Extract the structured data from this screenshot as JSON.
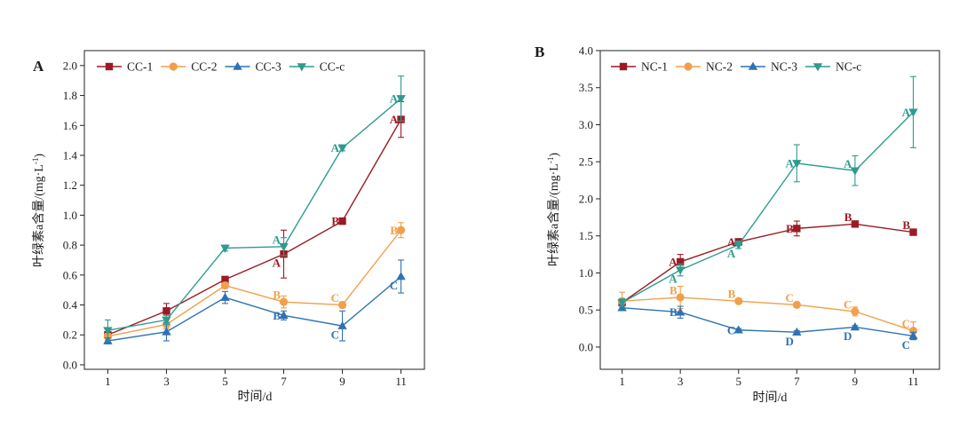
{
  "chart_data": [
    {
      "panel": "A",
      "type": "line",
      "xlabel": "时间/d",
      "ylabel": {
        "main": "叶绿素a含量/(mg·L",
        "sup": "-1",
        "end": ")"
      },
      "x": [
        1,
        3,
        5,
        7,
        9,
        11
      ],
      "xticks": [
        1,
        3,
        5,
        7,
        9,
        11
      ],
      "yticks": [
        "0.0",
        "0.2",
        "0.4",
        "0.6",
        "0.8",
        "1.0",
        "1.2",
        "1.4",
        "1.6",
        "1.8",
        "2.0"
      ],
      "xlim": [
        0.2,
        11.8
      ],
      "ylim": [
        -0.03,
        2.1
      ],
      "grid": false,
      "legend_position": "top-left",
      "series": [
        {
          "name": "CC-1",
          "color": "#9b1b24",
          "marker": "square",
          "values": [
            0.2,
            0.36,
            0.57,
            0.74,
            0.96,
            1.64
          ],
          "errors": [
            0.02,
            0.05,
            0.02,
            0.16,
            0.02,
            0.12
          ]
        },
        {
          "name": "CC-2",
          "color": "#f0a04b",
          "marker": "circle",
          "values": [
            0.19,
            0.27,
            0.53,
            0.42,
            0.4,
            0.9
          ],
          "errors": [
            0.02,
            0.03,
            0.02,
            0.04,
            0.02,
            0.05
          ]
        },
        {
          "name": "CC-3",
          "color": "#2f72b3",
          "marker": "triangle-up",
          "values": [
            0.16,
            0.22,
            0.45,
            0.33,
            0.26,
            0.59
          ],
          "errors": [
            0.02,
            0.06,
            0.04,
            0.03,
            0.1,
            0.11
          ]
        },
        {
          "name": "CC-c",
          "color": "#2e9b8f",
          "marker": "triangle-down",
          "values": [
            0.23,
            0.3,
            0.78,
            0.79,
            1.45,
            1.78
          ],
          "errors": [
            0.07,
            0.03,
            0.02,
            0.06,
            0.02,
            0.15
          ]
        }
      ],
      "annotations": [
        {
          "series": "CC-c",
          "x": 7,
          "text": "A",
          "position": "upper-left"
        },
        {
          "series": "CC-1",
          "x": 7,
          "text": "A",
          "position": "lower-left"
        },
        {
          "series": "CC-2",
          "x": 7,
          "text": "B",
          "position": "upper-left"
        },
        {
          "series": "CC-3",
          "x": 7,
          "text": "B",
          "position": "left"
        },
        {
          "series": "CC-c",
          "x": 9,
          "text": "A",
          "position": "left"
        },
        {
          "series": "CC-1",
          "x": 9,
          "text": "B",
          "position": "left"
        },
        {
          "series": "CC-2",
          "x": 9,
          "text": "C",
          "position": "upper-left"
        },
        {
          "series": "CC-3",
          "x": 9,
          "text": "C",
          "position": "lower-left"
        },
        {
          "series": "CC-c",
          "x": 11,
          "text": "A",
          "position": "left"
        },
        {
          "series": "CC-1",
          "x": 11,
          "text": "A",
          "position": "left"
        },
        {
          "series": "CC-2",
          "x": 11,
          "text": "B",
          "position": "left"
        },
        {
          "series": "CC-3",
          "x": 11,
          "text": "C",
          "position": "lower-left"
        }
      ]
    },
    {
      "panel": "B",
      "type": "line",
      "xlabel": "时间/d",
      "ylabel": {
        "main": "叶绿素a含量/(mg·L",
        "sup": "-1",
        "end": ")"
      },
      "x": [
        1,
        3,
        5,
        7,
        9,
        11
      ],
      "xticks": [
        1,
        3,
        5,
        7,
        9,
        11
      ],
      "yticks": [
        "0.0",
        "0.5",
        "1.0",
        "1.5",
        "2.0",
        "2.5",
        "3.0",
        "3.5",
        "4.0"
      ],
      "xlim": [
        0.25,
        11.9
      ],
      "ylim": [
        -0.3,
        4.0
      ],
      "grid": false,
      "legend_position": "top-left",
      "series": [
        {
          "name": "NC-1",
          "color": "#9b1b24",
          "marker": "square",
          "values": [
            0.6,
            1.15,
            1.42,
            1.6,
            1.66,
            1.55
          ],
          "errors": [
            0.03,
            0.1,
            0.03,
            0.1,
            0.03,
            0.03
          ]
        },
        {
          "name": "NC-2",
          "color": "#f0a04b",
          "marker": "circle",
          "values": [
            0.62,
            0.67,
            0.62,
            0.57,
            0.48,
            0.22
          ],
          "errors": [
            0.12,
            0.15,
            0.03,
            0.03,
            0.06,
            0.12
          ]
        },
        {
          "name": "NC-3",
          "color": "#2f72b3",
          "marker": "triangle-up",
          "values": [
            0.53,
            0.47,
            0.23,
            0.2,
            0.27,
            0.15
          ],
          "errors": [
            0.03,
            0.08,
            0.02,
            0.02,
            0.02,
            0.05
          ]
        },
        {
          "name": "NC-c",
          "color": "#2e9b8f",
          "marker": "triangle-down",
          "values": [
            0.6,
            1.04,
            1.38,
            2.48,
            2.38,
            3.17
          ],
          "errors": [
            0.05,
            0.08,
            0.05,
            0.25,
            0.2,
            0.48
          ]
        }
      ],
      "annotations": [
        {
          "series": "NC-1",
          "x": 3,
          "text": "A",
          "position": "left"
        },
        {
          "series": "NC-c",
          "x": 3,
          "text": "A",
          "position": "lower-left"
        },
        {
          "series": "NC-2",
          "x": 3,
          "text": "B",
          "position": "upper-left"
        },
        {
          "series": "NC-3",
          "x": 3,
          "text": "B",
          "position": "left"
        },
        {
          "series": "NC-1",
          "x": 5,
          "text": "A",
          "position": "left"
        },
        {
          "series": "NC-c",
          "x": 5,
          "text": "A",
          "position": "lower-left"
        },
        {
          "series": "NC-2",
          "x": 5,
          "text": "B",
          "position": "upper-left"
        },
        {
          "series": "NC-3",
          "x": 5,
          "text": "C",
          "position": "left"
        },
        {
          "series": "NC-c",
          "x": 7,
          "text": "A",
          "position": "left"
        },
        {
          "series": "NC-1",
          "x": 7,
          "text": "B",
          "position": "left"
        },
        {
          "series": "NC-2",
          "x": 7,
          "text": "C",
          "position": "upper-left"
        },
        {
          "series": "NC-3",
          "x": 7,
          "text": "D",
          "position": "lower-left"
        },
        {
          "series": "NC-c",
          "x": 9,
          "text": "A",
          "position": "upper-left"
        },
        {
          "series": "NC-1",
          "x": 9,
          "text": "B",
          "position": "upper-left"
        },
        {
          "series": "NC-2",
          "x": 9,
          "text": "C",
          "position": "upper-left"
        },
        {
          "series": "NC-3",
          "x": 9,
          "text": "D",
          "position": "lower-left"
        },
        {
          "series": "NC-c",
          "x": 11,
          "text": "A",
          "position": "left"
        },
        {
          "series": "NC-1",
          "x": 11,
          "text": "B",
          "position": "upper-left"
        },
        {
          "series": "NC-2",
          "x": 11,
          "text": "C",
          "position": "upper-left"
        },
        {
          "series": "NC-3",
          "x": 11,
          "text": "C",
          "position": "lower-left"
        }
      ]
    }
  ]
}
